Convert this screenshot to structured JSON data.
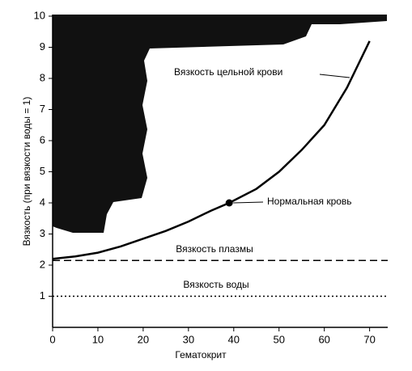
{
  "chart_data": {
    "type": "line",
    "xlabel": "Гематокрит",
    "ylabel": "Вязкость (при вязкости воды = 1)",
    "xlim": [
      0,
      74
    ],
    "xticks": [
      0,
      10,
      20,
      30,
      40,
      50,
      60,
      70
    ],
    "ylim": [
      0,
      10
    ],
    "yticks": [
      1,
      2,
      3,
      4,
      5,
      6,
      7,
      8,
      9,
      10
    ],
    "series": [
      {
        "name": "Вязкость цельной крови",
        "color": "#000000",
        "style": "solid",
        "x": [
          0,
          5,
          10,
          15,
          20,
          25,
          30,
          35,
          39,
          45,
          50,
          55,
          60,
          65,
          70
        ],
        "values": [
          2.2,
          2.28,
          2.4,
          2.6,
          2.85,
          3.1,
          3.4,
          3.75,
          4.0,
          4.45,
          5.0,
          5.7,
          6.5,
          7.7,
          9.2
        ]
      },
      {
        "name": "Вязкость плазмы",
        "color": "#000000",
        "style": "dashed",
        "x": [
          0,
          74
        ],
        "values": [
          2.15,
          2.15
        ]
      },
      {
        "name": "Вязкость воды",
        "color": "#000000",
        "style": "dotted",
        "x": [
          0,
          74
        ],
        "values": [
          1.0,
          1.0
        ]
      }
    ],
    "point": {
      "label": "Нормальная кровь",
      "x": 39,
      "y": 4.0
    }
  }
}
